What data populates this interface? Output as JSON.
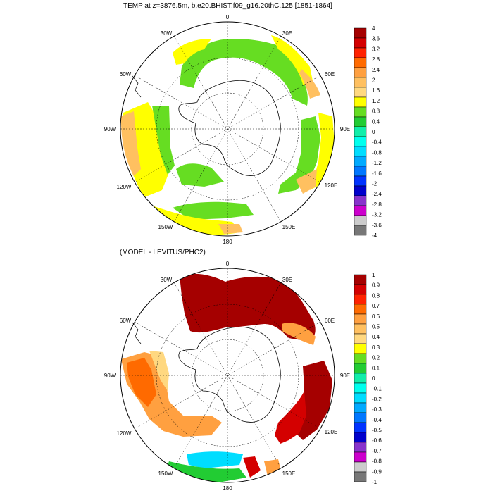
{
  "panels": [
    {
      "title": "TEMP at z=3876.5m, b.e20.BHIST.f09_g16.20thC.125 [1851-1864]",
      "colorbar": {
        "labels": [
          "4",
          "3.6",
          "3.2",
          "2.8",
          "2.4",
          "2",
          "1.6",
          "1.2",
          "0.8",
          "0.4",
          "0",
          "-0.4",
          "-0.8",
          "-1.2",
          "-1.6",
          "-2",
          "-2.4",
          "-2.8",
          "-3.2",
          "-3.6",
          "-4"
        ]
      }
    },
    {
      "title": "(MODEL - LEVITUS/PHC2)",
      "colorbar": {
        "labels": [
          "1",
          "0.9",
          "0.8",
          "0.7",
          "0.6",
          "0.5",
          "0.4",
          "0.3",
          "0.2",
          "0.1",
          "0",
          "-0.1",
          "-0.2",
          "-0.3",
          "-0.4",
          "-0.5",
          "-0.6",
          "-0.7",
          "-0.8",
          "-0.9",
          "-1"
        ]
      }
    }
  ],
  "longitude_labels": {
    "top": "0",
    "e30": "30E",
    "e60": "60E",
    "e90": "90E",
    "e120": "120E",
    "e150": "150E",
    "bottom": "180",
    "w150": "150W",
    "w120": "120W",
    "w90": "90W",
    "w60": "60W",
    "w30": "30W"
  },
  "colors": {
    "palette": [
      "#a50000",
      "#d40000",
      "#ff2200",
      "#ff6a00",
      "#ffa040",
      "#ffc060",
      "#ffd880",
      "#ffff00",
      "#66dd22",
      "#22cc33",
      "#11eeaa",
      "#00ffee",
      "#00ddff",
      "#00aaff",
      "#0077ff",
      "#0033ff",
      "#0000cc",
      "#8833cc",
      "#cc00cc",
      "#cccccc",
      "#777777"
    ]
  }
}
